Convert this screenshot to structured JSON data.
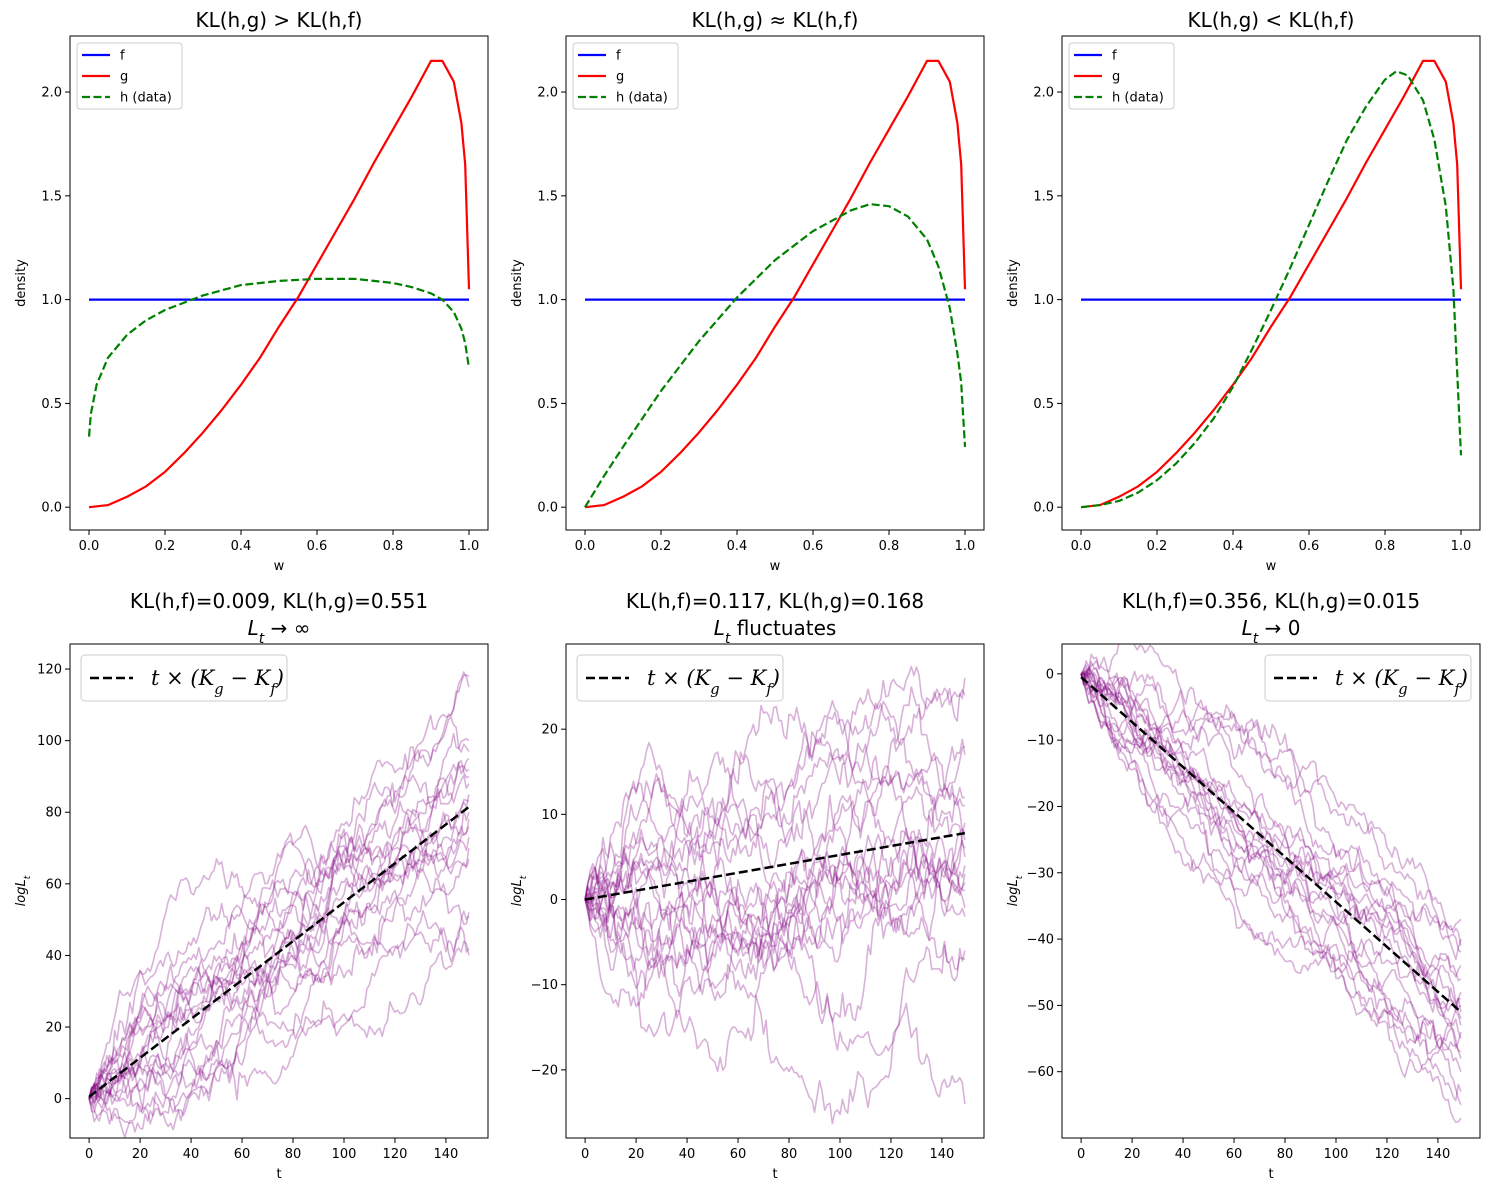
{
  "figure": {
    "background": "#ffffff"
  },
  "colors": {
    "f": "#0000ff",
    "g": "#ff0000",
    "h": "#008000",
    "path": "#800080",
    "trend": "#000000"
  },
  "chart_data": [
    {
      "type": "line",
      "title": "KL(h,g) > KL(h,f)",
      "xlabel": "w",
      "ylabel": "density",
      "xlim": [
        -0.05,
        1.05
      ],
      "ylim": [
        -0.11,
        2.27
      ],
      "xticks": [
        0.0,
        0.2,
        0.4,
        0.6,
        0.8,
        1.0
      ],
      "xticklabels": [
        "0.0",
        "0.2",
        "0.4",
        "0.6",
        "0.8",
        "1.0"
      ],
      "yticks": [
        0.0,
        0.5,
        1.0,
        1.5,
        2.0
      ],
      "yticklabels": [
        "0.0",
        "0.5",
        "1.0",
        "1.5",
        "2.0"
      ],
      "legend_position": "top-left",
      "series": [
        {
          "name": "f",
          "color": "#0000ff",
          "style": "solid",
          "x": [
            0,
            1
          ],
          "y": [
            1.0,
            1.0
          ]
        },
        {
          "name": "g",
          "color": "#ff0000",
          "style": "solid",
          "x": [
            0,
            0.05,
            0.1,
            0.15,
            0.2,
            0.25,
            0.3,
            0.35,
            0.4,
            0.45,
            0.5,
            0.55,
            0.6,
            0.65,
            0.7,
            0.75,
            0.8,
            0.85,
            0.9,
            0.93,
            0.96,
            0.98,
            0.99,
            1.0
          ],
          "y": [
            0.0,
            0.01,
            0.05,
            0.1,
            0.17,
            0.26,
            0.36,
            0.47,
            0.59,
            0.72,
            0.87,
            1.01,
            1.17,
            1.33,
            1.49,
            1.66,
            1.82,
            1.98,
            2.15,
            2.15,
            2.05,
            1.85,
            1.65,
            1.05
          ]
        },
        {
          "name": "h (data)",
          "color": "#008000",
          "style": "dashed",
          "x": [
            0,
            0.005,
            0.02,
            0.05,
            0.1,
            0.15,
            0.2,
            0.3,
            0.4,
            0.5,
            0.6,
            0.7,
            0.8,
            0.85,
            0.9,
            0.93,
            0.96,
            0.98,
            0.99,
            1.0
          ],
          "y": [
            0.34,
            0.45,
            0.59,
            0.72,
            0.83,
            0.9,
            0.95,
            1.02,
            1.07,
            1.09,
            1.1,
            1.1,
            1.08,
            1.06,
            1.03,
            1.0,
            0.94,
            0.86,
            0.79,
            0.67
          ]
        }
      ]
    },
    {
      "type": "line",
      "title": "KL(h,g) ≈ KL(h,f)",
      "xlabel": "w",
      "ylabel": "density",
      "xlim": [
        -0.05,
        1.05
      ],
      "ylim": [
        -0.11,
        2.27
      ],
      "xticks": [
        0.0,
        0.2,
        0.4,
        0.6,
        0.8,
        1.0
      ],
      "xticklabels": [
        "0.0",
        "0.2",
        "0.4",
        "0.6",
        "0.8",
        "1.0"
      ],
      "yticks": [
        0.0,
        0.5,
        1.0,
        1.5,
        2.0
      ],
      "yticklabels": [
        "0.0",
        "0.5",
        "1.0",
        "1.5",
        "2.0"
      ],
      "legend_position": "top-left",
      "series": [
        {
          "name": "f",
          "color": "#0000ff",
          "style": "solid",
          "x": [
            0,
            1
          ],
          "y": [
            1.0,
            1.0
          ]
        },
        {
          "name": "g",
          "color": "#ff0000",
          "style": "solid",
          "x": [
            0,
            0.05,
            0.1,
            0.15,
            0.2,
            0.25,
            0.3,
            0.35,
            0.4,
            0.45,
            0.5,
            0.55,
            0.6,
            0.65,
            0.7,
            0.75,
            0.8,
            0.85,
            0.9,
            0.93,
            0.96,
            0.98,
            0.99,
            1.0
          ],
          "y": [
            0.0,
            0.01,
            0.05,
            0.1,
            0.17,
            0.26,
            0.36,
            0.47,
            0.59,
            0.72,
            0.87,
            1.01,
            1.17,
            1.33,
            1.49,
            1.66,
            1.82,
            1.98,
            2.15,
            2.15,
            2.05,
            1.85,
            1.65,
            1.05
          ]
        },
        {
          "name": "h (data)",
          "color": "#008000",
          "style": "dashed",
          "x": [
            0,
            0.05,
            0.1,
            0.2,
            0.3,
            0.4,
            0.5,
            0.6,
            0.7,
            0.75,
            0.8,
            0.85,
            0.9,
            0.93,
            0.96,
            0.98,
            0.99,
            1.0
          ],
          "y": [
            0.0,
            0.15,
            0.29,
            0.56,
            0.8,
            1.01,
            1.19,
            1.33,
            1.43,
            1.46,
            1.45,
            1.4,
            1.29,
            1.16,
            0.96,
            0.74,
            0.6,
            0.29
          ]
        }
      ]
    },
    {
      "type": "line",
      "title": "KL(h,g) < KL(h,f)",
      "xlabel": "w",
      "ylabel": "density",
      "xlim": [
        -0.05,
        1.05
      ],
      "ylim": [
        -0.11,
        2.27
      ],
      "xticks": [
        0.0,
        0.2,
        0.4,
        0.6,
        0.8,
        1.0
      ],
      "xticklabels": [
        "0.0",
        "0.2",
        "0.4",
        "0.6",
        "0.8",
        "1.0"
      ],
      "yticks": [
        0.0,
        0.5,
        1.0,
        1.5,
        2.0
      ],
      "yticklabels": [
        "0.0",
        "0.5",
        "1.0",
        "1.5",
        "2.0"
      ],
      "legend_position": "top-left",
      "series": [
        {
          "name": "f",
          "color": "#0000ff",
          "style": "solid",
          "x": [
            0,
            1
          ],
          "y": [
            1.0,
            1.0
          ]
        },
        {
          "name": "g",
          "color": "#ff0000",
          "style": "solid",
          "x": [
            0,
            0.05,
            0.1,
            0.15,
            0.2,
            0.25,
            0.3,
            0.35,
            0.4,
            0.45,
            0.5,
            0.55,
            0.6,
            0.65,
            0.7,
            0.75,
            0.8,
            0.85,
            0.9,
            0.93,
            0.96,
            0.98,
            0.99,
            1.0
          ],
          "y": [
            0.0,
            0.01,
            0.05,
            0.1,
            0.17,
            0.26,
            0.36,
            0.47,
            0.59,
            0.72,
            0.87,
            1.01,
            1.17,
            1.33,
            1.49,
            1.66,
            1.82,
            1.98,
            2.15,
            2.15,
            2.05,
            1.85,
            1.65,
            1.05
          ]
        },
        {
          "name": "h (data)",
          "color": "#008000",
          "style": "dashed",
          "x": [
            0,
            0.05,
            0.1,
            0.15,
            0.2,
            0.25,
            0.3,
            0.35,
            0.4,
            0.45,
            0.5,
            0.55,
            0.6,
            0.65,
            0.7,
            0.75,
            0.8,
            0.83,
            0.86,
            0.9,
            0.93,
            0.96,
            0.98,
            1.0
          ],
          "y": [
            0.0,
            0.01,
            0.03,
            0.07,
            0.13,
            0.21,
            0.31,
            0.43,
            0.58,
            0.76,
            0.95,
            1.15,
            1.36,
            1.57,
            1.77,
            1.93,
            2.06,
            2.1,
            2.08,
            1.96,
            1.77,
            1.45,
            1.05,
            0.25
          ]
        }
      ]
    },
    {
      "type": "line",
      "title": "KL(h,f)=0.009, KL(h,g)=0.551",
      "subtitle": "L_t → ∞",
      "xlabel": "t",
      "ylabel": "logL_t",
      "xlim": [
        -7.5,
        156.5
      ],
      "ylim": [
        -11,
        127
      ],
      "xticks": [
        0,
        20,
        40,
        60,
        80,
        100,
        120,
        140
      ],
      "xticklabels": [
        "0",
        "20",
        "40",
        "60",
        "80",
        "100",
        "120",
        "140"
      ],
      "yticks": [
        0,
        20,
        40,
        60,
        80,
        100,
        120
      ],
      "yticklabels": [
        "0",
        "20",
        "40",
        "60",
        "80",
        "100",
        "120"
      ],
      "legend_position": "top-left",
      "legend": "t × (K_g − K_f)",
      "trend": {
        "x": [
          0,
          149
        ],
        "y": [
          0.5,
          81.5
        ]
      },
      "paths": {
        "count": 20,
        "t_max": 149,
        "mean_step": 0.545,
        "step_sd": 2.1,
        "seed": 11
      },
      "final_values": [
        118,
        115,
        100,
        97,
        95,
        92,
        90,
        88,
        85,
        83,
        80,
        78,
        76,
        73,
        70,
        67,
        52,
        51,
        42,
        40
      ]
    },
    {
      "type": "line",
      "title": "KL(h,f)=0.117, KL(h,g)=0.168",
      "subtitle": "L_t fluctuates",
      "xlabel": "t",
      "ylabel": "logL_t",
      "xlim": [
        -7.5,
        156.5
      ],
      "ylim": [
        -28,
        30
      ],
      "xticks": [
        0,
        20,
        40,
        60,
        80,
        100,
        120,
        140
      ],
      "xticklabels": [
        "0",
        "20",
        "40",
        "60",
        "80",
        "100",
        "120",
        "140"
      ],
      "yticks": [
        -20,
        -10,
        0,
        10,
        20
      ],
      "yticklabels": [
        "−20",
        "−10",
        "0",
        "10",
        "20"
      ],
      "legend_position": "top-left",
      "legend": "t × (K_g − K_f)",
      "trend": {
        "x": [
          0,
          149
        ],
        "y": [
          0,
          7.8
        ]
      },
      "paths": {
        "count": 20,
        "t_max": 149,
        "mean_step": 0.052,
        "step_sd": 1.25,
        "seed": 23
      },
      "final_values": [
        26,
        24,
        18,
        17,
        12,
        11,
        9,
        8,
        7,
        6,
        5,
        4,
        3,
        2,
        1,
        -1,
        -2,
        -6,
        -7,
        -24
      ]
    },
    {
      "type": "line",
      "title": "KL(h,f)=0.356, KL(h,g)=0.015",
      "subtitle": "L_t → 0",
      "xlabel": "t",
      "ylabel": "logL_t",
      "xlim": [
        -7.5,
        156.5
      ],
      "ylim": [
        -70,
        4.5
      ],
      "xticks": [
        0,
        20,
        40,
        60,
        80,
        100,
        120,
        140
      ],
      "xticklabels": [
        "0",
        "20",
        "40",
        "60",
        "80",
        "100",
        "120",
        "140"
      ],
      "yticks": [
        -60,
        -50,
        -40,
        -30,
        -20,
        -10,
        0
      ],
      "yticklabels": [
        "−60",
        "−50",
        "−40",
        "−30",
        "−20",
        "−10",
        "0"
      ],
      "legend_position": "top-right",
      "legend": "t × (K_g − K_f)",
      "trend": {
        "x": [
          0,
          149
        ],
        "y": [
          -0.5,
          -51
        ]
      },
      "paths": {
        "count": 20,
        "t_max": 149,
        "mean_step": -0.34,
        "step_sd": 0.95,
        "seed": 37
      },
      "final_values": [
        -37,
        -40,
        -41,
        -42,
        -44,
        -46,
        -48,
        -49,
        -50,
        -51,
        -52,
        -53,
        -54,
        -55,
        -57,
        -58,
        -60,
        -63,
        -65,
        -67
      ]
    }
  ]
}
